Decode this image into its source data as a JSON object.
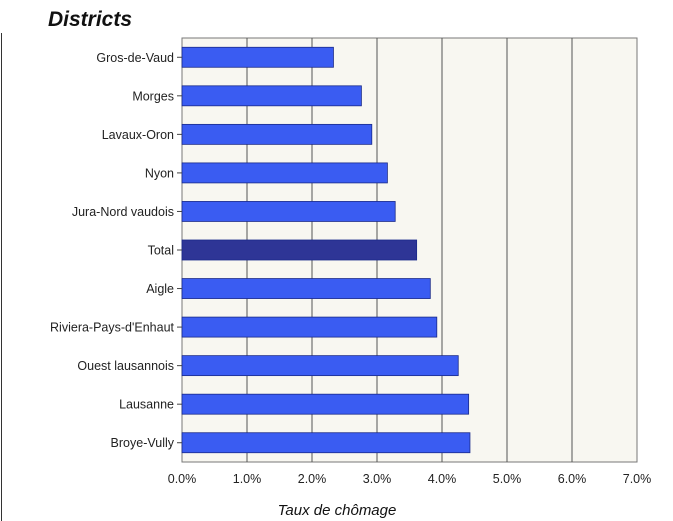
{
  "chart_data": {
    "type": "bar",
    "orientation": "horizontal",
    "title": "Districts",
    "xlabel": "Taux de chômage",
    "ylabel": "",
    "xlim": [
      0,
      0.07
    ],
    "x_ticks": [
      "0.0%",
      "1.0%",
      "2.0%",
      "3.0%",
      "4.0%",
      "5.0%",
      "6.0%",
      "7.0%"
    ],
    "grid": "vertical",
    "categories": [
      "Gros-de-Vaud",
      "Morges",
      "Lavaux-Oron",
      "Nyon",
      "Jura-Nord vaudois",
      "Total",
      "Aigle",
      "Riviera-Pays-d'Enhaut",
      "Ouest lausannois",
      "Lausanne",
      "Broye-Vully"
    ],
    "values": [
      0.0233,
      0.0276,
      0.0292,
      0.0316,
      0.0328,
      0.0361,
      0.0382,
      0.0392,
      0.0425,
      0.0441,
      0.0443
    ],
    "colors": {
      "bar": "#3a5cf2",
      "bar_highlight": "#2e3596",
      "bar_border": "#1a2a8a",
      "plot_background": "#f8f7f1",
      "grid": "#555555"
    },
    "highlight": "Total"
  }
}
